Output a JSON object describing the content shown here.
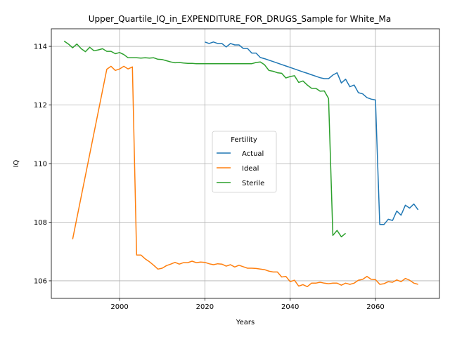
{
  "chart_data": {
    "type": "line",
    "title": "Upper_Quartile_IQ_in_EXPENDITURE_FOR_DRUGS_Sample for White_Ma",
    "xlabel": "Years",
    "ylabel": "IQ",
    "xlim": [
      1984,
      2075
    ],
    "ylim": [
      105.4,
      114.6
    ],
    "xticks": [
      2000,
      2020,
      2040,
      2060
    ],
    "yticks": [
      106,
      108,
      110,
      112,
      114
    ],
    "grid": true,
    "legend": {
      "title": "Fertility",
      "placement": "center-right",
      "entries": [
        "Actual",
        "Ideal",
        "Sterile"
      ]
    },
    "series": [
      {
        "name": "Actual",
        "color": "#1f77b4",
        "points": [
          [
            2020,
            114.15
          ],
          [
            2021,
            114.1
          ],
          [
            2022,
            114.15
          ],
          [
            2023,
            114.1
          ],
          [
            2024,
            114.1
          ],
          [
            2025,
            113.98
          ],
          [
            2026,
            114.1
          ],
          [
            2027,
            114.05
          ],
          [
            2028,
            114.05
          ],
          [
            2029,
            113.93
          ],
          [
            2030,
            113.93
          ],
          [
            2031,
            113.77
          ],
          [
            2032,
            113.77
          ],
          [
            2033,
            113.62
          ],
          [
            2034,
            113.58
          ],
          [
            2035,
            113.53
          ],
          [
            2036,
            113.48
          ],
          [
            2037,
            113.43
          ],
          [
            2038,
            113.38
          ],
          [
            2039,
            113.33
          ],
          [
            2040,
            113.28
          ],
          [
            2041,
            113.23
          ],
          [
            2042,
            113.18
          ],
          [
            2043,
            113.13
          ],
          [
            2044,
            113.08
          ],
          [
            2045,
            113.03
          ],
          [
            2046,
            112.98
          ],
          [
            2047,
            112.93
          ],
          [
            2048,
            112.9
          ],
          [
            2049,
            112.9
          ],
          [
            2050,
            113.02
          ],
          [
            2051,
            113.1
          ],
          [
            2052,
            112.75
          ],
          [
            2053,
            112.88
          ],
          [
            2054,
            112.62
          ],
          [
            2055,
            112.68
          ],
          [
            2056,
            112.42
          ],
          [
            2057,
            112.38
          ],
          [
            2058,
            112.25
          ],
          [
            2059,
            112.2
          ],
          [
            2060,
            112.17
          ],
          [
            2061,
            107.92
          ],
          [
            2062,
            107.92
          ],
          [
            2063,
            108.1
          ],
          [
            2064,
            108.06
          ],
          [
            2065,
            108.38
          ],
          [
            2066,
            108.24
          ],
          [
            2067,
            108.58
          ],
          [
            2068,
            108.48
          ],
          [
            2069,
            108.62
          ],
          [
            2070,
            108.42
          ]
        ]
      },
      {
        "name": "Ideal",
        "color": "#ff7f0e",
        "points": [
          [
            1989,
            107.42
          ],
          [
            1997,
            113.22
          ],
          [
            1998,
            113.32
          ],
          [
            1999,
            113.18
          ],
          [
            2000,
            113.23
          ],
          [
            2001,
            113.32
          ],
          [
            2002,
            113.23
          ],
          [
            2003,
            113.3
          ],
          [
            2004,
            106.88
          ],
          [
            2005,
            106.88
          ],
          [
            2006,
            106.75
          ],
          [
            2007,
            106.65
          ],
          [
            2008,
            106.53
          ],
          [
            2009,
            106.4
          ],
          [
            2010,
            106.43
          ],
          [
            2011,
            106.52
          ],
          [
            2012,
            106.57
          ],
          [
            2013,
            106.63
          ],
          [
            2014,
            106.57
          ],
          [
            2015,
            106.62
          ],
          [
            2016,
            106.62
          ],
          [
            2017,
            106.67
          ],
          [
            2018,
            106.62
          ],
          [
            2019,
            106.64
          ],
          [
            2020,
            106.63
          ],
          [
            2021,
            106.58
          ],
          [
            2022,
            106.55
          ],
          [
            2023,
            106.58
          ],
          [
            2024,
            106.57
          ],
          [
            2025,
            106.5
          ],
          [
            2026,
            106.55
          ],
          [
            2027,
            106.47
          ],
          [
            2028,
            106.53
          ],
          [
            2029,
            106.48
          ],
          [
            2030,
            106.43
          ],
          [
            2031,
            106.43
          ],
          [
            2032,
            106.42
          ],
          [
            2033,
            106.4
          ],
          [
            2034,
            106.38
          ],
          [
            2035,
            106.33
          ],
          [
            2036,
            106.3
          ],
          [
            2037,
            106.3
          ],
          [
            2038,
            106.13
          ],
          [
            2039,
            106.15
          ],
          [
            2040,
            105.97
          ],
          [
            2041,
            106.02
          ],
          [
            2042,
            105.82
          ],
          [
            2043,
            105.87
          ],
          [
            2044,
            105.8
          ],
          [
            2045,
            105.92
          ],
          [
            2046,
            105.92
          ],
          [
            2047,
            105.95
          ],
          [
            2048,
            105.92
          ],
          [
            2049,
            105.9
          ],
          [
            2050,
            105.92
          ],
          [
            2051,
            105.92
          ],
          [
            2052,
            105.85
          ],
          [
            2053,
            105.92
          ],
          [
            2054,
            105.88
          ],
          [
            2055,
            105.92
          ],
          [
            2056,
            106.02
          ],
          [
            2057,
            106.05
          ],
          [
            2058,
            106.15
          ],
          [
            2059,
            106.05
          ],
          [
            2060,
            106.04
          ],
          [
            2061,
            105.88
          ],
          [
            2062,
            105.9
          ],
          [
            2063,
            105.97
          ],
          [
            2064,
            105.95
          ],
          [
            2065,
            106.03
          ],
          [
            2066,
            105.97
          ],
          [
            2067,
            106.08
          ],
          [
            2068,
            106.02
          ],
          [
            2069,
            105.92
          ],
          [
            2070,
            105.88
          ]
        ]
      },
      {
        "name": "Sterile",
        "color": "#2ca02c",
        "points": [
          [
            1987,
            114.18
          ],
          [
            1988,
            114.08
          ],
          [
            1989,
            113.95
          ],
          [
            1990,
            114.08
          ],
          [
            1991,
            113.92
          ],
          [
            1992,
            113.82
          ],
          [
            1993,
            113.97
          ],
          [
            1994,
            113.85
          ],
          [
            1995,
            113.88
          ],
          [
            1996,
            113.92
          ],
          [
            1997,
            113.83
          ],
          [
            1998,
            113.83
          ],
          [
            1999,
            113.75
          ],
          [
            2000,
            113.79
          ],
          [
            2001,
            113.72
          ],
          [
            2002,
            113.61
          ],
          [
            2003,
            113.61
          ],
          [
            2004,
            113.61
          ],
          [
            2005,
            113.6
          ],
          [
            2006,
            113.61
          ],
          [
            2007,
            113.6
          ],
          [
            2008,
            113.61
          ],
          [
            2009,
            113.56
          ],
          [
            2010,
            113.55
          ],
          [
            2011,
            113.51
          ],
          [
            2012,
            113.47
          ],
          [
            2013,
            113.44
          ],
          [
            2014,
            113.45
          ],
          [
            2015,
            113.43
          ],
          [
            2016,
            113.42
          ],
          [
            2017,
            113.42
          ],
          [
            2018,
            113.41
          ],
          [
            2019,
            113.41
          ],
          [
            2020,
            113.41
          ],
          [
            2021,
            113.41
          ],
          [
            2022,
            113.41
          ],
          [
            2023,
            113.41
          ],
          [
            2024,
            113.41
          ],
          [
            2025,
            113.41
          ],
          [
            2026,
            113.41
          ],
          [
            2027,
            113.41
          ],
          [
            2028,
            113.41
          ],
          [
            2029,
            113.41
          ],
          [
            2030,
            113.41
          ],
          [
            2031,
            113.41
          ],
          [
            2032,
            113.45
          ],
          [
            2033,
            113.47
          ],
          [
            2034,
            113.37
          ],
          [
            2035,
            113.18
          ],
          [
            2036,
            113.15
          ],
          [
            2037,
            113.1
          ],
          [
            2038,
            113.08
          ],
          [
            2039,
            112.92
          ],
          [
            2040,
            112.97
          ],
          [
            2041,
            113.0
          ],
          [
            2042,
            112.77
          ],
          [
            2043,
            112.82
          ],
          [
            2044,
            112.68
          ],
          [
            2045,
            112.57
          ],
          [
            2046,
            112.57
          ],
          [
            2047,
            112.47
          ],
          [
            2048,
            112.48
          ],
          [
            2049,
            112.22
          ],
          [
            2050,
            107.55
          ],
          [
            2051,
            107.72
          ],
          [
            2052,
            107.5
          ],
          [
            2053,
            107.62
          ]
        ]
      }
    ]
  }
}
